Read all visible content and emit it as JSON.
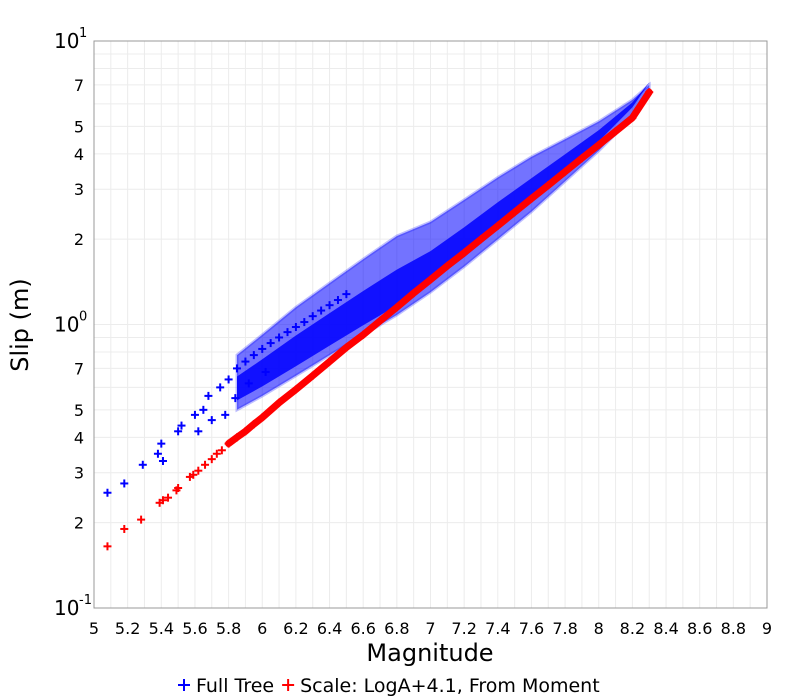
{
  "chart_data": {
    "type": "scatter",
    "title": "",
    "xlabel": "Magnitude",
    "ylabel": "Slip (m)",
    "xlim": [
      5,
      9
    ],
    "ylim": [
      0.1,
      10
    ],
    "y_scale": "log",
    "grid": true,
    "x_ticks": [
      "5",
      "5.2",
      "5.4",
      "5.6",
      "5.8",
      "6",
      "6.2",
      "6.4",
      "6.6",
      "6.8",
      "7",
      "7.2",
      "7.4",
      "7.6",
      "7.8",
      "8",
      "8.2",
      "8.4",
      "8.6",
      "8.8",
      "9"
    ],
    "y_ticks": [
      {
        "value": 0.1,
        "base": "10",
        "exp": "-1"
      },
      {
        "value": 0.2,
        "label": "2"
      },
      {
        "value": 0.3,
        "label": "3"
      },
      {
        "value": 0.4,
        "label": "4"
      },
      {
        "value": 0.5,
        "label": "5"
      },
      {
        "value": 0.7,
        "label": "7"
      },
      {
        "value": 1,
        "base": "10",
        "exp": "0"
      },
      {
        "value": 2,
        "label": "2"
      },
      {
        "value": 3,
        "label": "3"
      },
      {
        "value": 4,
        "label": "4"
      },
      {
        "value": 5,
        "label": "5"
      },
      {
        "value": 7,
        "label": "7"
      },
      {
        "value": 10,
        "base": "10",
        "exp": "1"
      }
    ],
    "legend_position": "bottom",
    "series": [
      {
        "name": "Full Tree",
        "color": "#0000ff",
        "marker": "plus",
        "points": [
          [
            5.08,
            0.255
          ],
          [
            5.18,
            0.275
          ],
          [
            5.29,
            0.32
          ],
          [
            5.38,
            0.35
          ],
          [
            5.4,
            0.38
          ],
          [
            5.41,
            0.33
          ],
          [
            5.5,
            0.42
          ],
          [
            5.52,
            0.44
          ],
          [
            5.6,
            0.48
          ],
          [
            5.62,
            0.42
          ],
          [
            5.65,
            0.5
          ],
          [
            5.68,
            0.56
          ],
          [
            5.7,
            0.46
          ],
          [
            5.75,
            0.6
          ],
          [
            5.78,
            0.48
          ],
          [
            5.8,
            0.64
          ],
          [
            5.84,
            0.55
          ],
          [
            5.85,
            0.7
          ],
          [
            5.9,
            0.74
          ],
          [
            5.92,
            0.62
          ],
          [
            5.95,
            0.78
          ],
          [
            6.0,
            0.82
          ],
          [
            6.02,
            0.68
          ],
          [
            6.05,
            0.86
          ],
          [
            6.1,
            0.9
          ],
          [
            6.15,
            0.94
          ],
          [
            6.2,
            0.98
          ],
          [
            6.25,
            1.02
          ],
          [
            6.3,
            1.07
          ],
          [
            6.35,
            1.12
          ],
          [
            6.4,
            1.17
          ],
          [
            6.45,
            1.22
          ],
          [
            6.5,
            1.28
          ]
        ],
        "band": {
          "x": [
            5.85,
            6.0,
            6.2,
            6.4,
            6.6,
            6.8,
            7.0,
            7.2,
            7.4,
            7.6,
            7.8,
            8.0,
            8.2,
            8.3
          ],
          "upper": [
            0.78,
            0.92,
            1.15,
            1.4,
            1.7,
            2.05,
            2.3,
            2.75,
            3.3,
            3.9,
            4.5,
            5.2,
            6.2,
            7.0
          ],
          "lower": [
            0.5,
            0.56,
            0.66,
            0.78,
            0.92,
            1.08,
            1.3,
            1.6,
            2.0,
            2.5,
            3.2,
            4.1,
            5.4,
            6.6
          ]
        }
      },
      {
        "name": "Scale: LogA+4.1, From Moment",
        "color": "#ff0000",
        "marker": "plus",
        "points": [
          [
            5.08,
            0.165
          ],
          [
            5.18,
            0.19
          ],
          [
            5.28,
            0.205
          ],
          [
            5.39,
            0.235
          ],
          [
            5.41,
            0.24
          ],
          [
            5.44,
            0.245
          ],
          [
            5.49,
            0.26
          ],
          [
            5.5,
            0.265
          ],
          [
            5.57,
            0.29
          ],
          [
            5.59,
            0.295
          ],
          [
            5.62,
            0.305
          ],
          [
            5.66,
            0.32
          ],
          [
            5.7,
            0.335
          ],
          [
            5.73,
            0.35
          ],
          [
            5.76,
            0.36
          ],
          [
            5.8,
            0.38
          ],
          [
            5.85,
            0.4
          ],
          [
            5.9,
            0.42
          ],
          [
            5.95,
            0.445
          ],
          [
            6.0,
            0.47
          ],
          [
            6.1,
            0.53
          ],
          [
            6.2,
            0.59
          ],
          [
            6.3,
            0.66
          ],
          [
            6.4,
            0.74
          ],
          [
            6.5,
            0.83
          ],
          [
            6.6,
            0.92
          ],
          [
            6.7,
            1.03
          ],
          [
            6.8,
            1.15
          ],
          [
            6.9,
            1.29
          ],
          [
            7.0,
            1.44
          ],
          [
            7.1,
            1.61
          ],
          [
            7.2,
            1.79
          ],
          [
            7.3,
            2.0
          ],
          [
            7.4,
            2.23
          ],
          [
            7.5,
            2.49
          ],
          [
            7.6,
            2.78
          ],
          [
            7.7,
            3.1
          ],
          [
            7.8,
            3.46
          ],
          [
            7.9,
            3.86
          ],
          [
            8.0,
            4.3
          ],
          [
            8.1,
            4.8
          ],
          [
            8.2,
            5.36
          ],
          [
            8.3,
            6.6
          ]
        ]
      }
    ]
  }
}
